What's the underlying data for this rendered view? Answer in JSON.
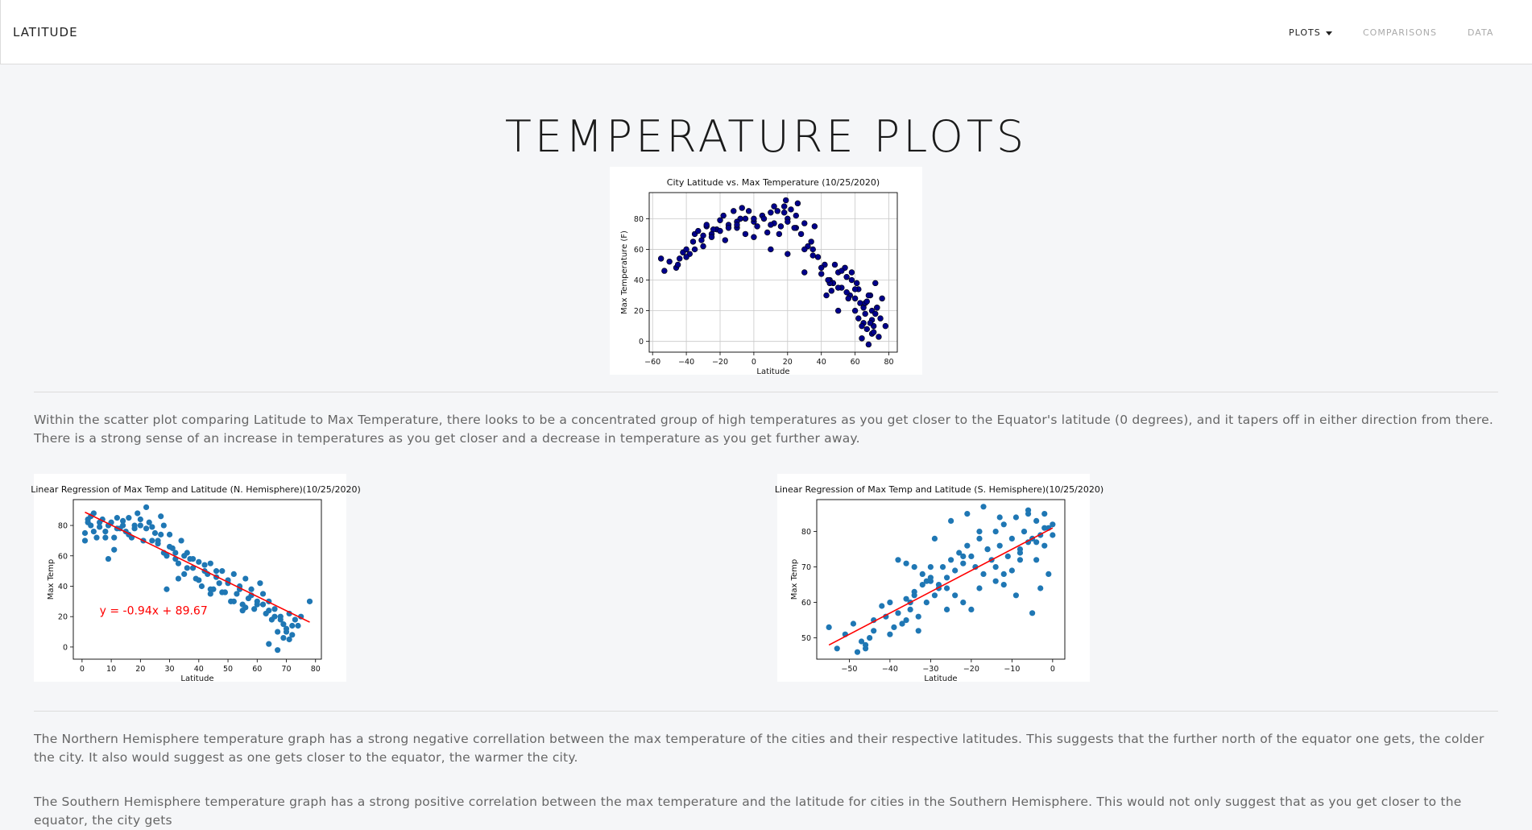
{
  "nav": {
    "brand": "LATITUDE",
    "items": [
      {
        "label": "PLOTS",
        "active": true,
        "dropdown": true
      },
      {
        "label": "COMPARISONS",
        "active": false
      },
      {
        "label": "DATA",
        "active": false
      }
    ]
  },
  "page": {
    "title": "TEMPERATURE PLOTS",
    "paragraphs": [
      "Within the scatter plot comparing Latitude to Max Temperature, there looks to be a concentrated group of high temperatures as you get closer to the Equator's latitude (0 degrees), and it tapers off in either direction from there. There is a strong sense of an increase in temperatures as you get closer and a decrease in temperature as you get further away.",
      "The Northern Hemisphere temperature graph has a strong negative correllation between the max temperature of the cities and their respective latitudes. This suggests that the further north of the equator one gets, the colder the city. It also would suggest as one gets closer to the equator, the warmer the city.",
      "The Southern Hemisphere temperature graph has a strong positive correlation between the max temperature and the latitude for cities in the Southern Hemisphere. This would not only suggest that as you get closer to the equator, the city gets"
    ]
  },
  "colors": {
    "main_point": "#00008b",
    "regression_point": "#1f77b4",
    "regression_line": "#ff0000"
  },
  "chart_data": [
    {
      "type": "scatter",
      "title": "City Latitude vs. Max Temperature (10/25/2020)",
      "xlabel": "Latitude",
      "ylabel": "Max Temperature (F)",
      "xlim": [
        -62,
        85
      ],
      "ylim": [
        -7,
        97
      ],
      "xticks": [
        -60,
        -40,
        -20,
        0,
        20,
        40,
        60,
        80
      ],
      "yticks": [
        0,
        20,
        40,
        60,
        80
      ],
      "grid": true,
      "series": [
        {
          "x": [
            -55,
            -53,
            -46,
            -44,
            -42,
            -40,
            -38,
            -36,
            -35,
            -33,
            -31,
            -30,
            -28,
            -25,
            -22,
            -20,
            -18,
            -15,
            -12,
            -10,
            -8,
            -5,
            -3,
            0,
            2,
            5,
            8,
            10,
            12,
            14,
            16,
            18,
            19,
            20,
            22,
            25,
            28,
            30,
            32,
            35,
            36,
            38,
            40,
            42,
            43,
            45,
            47,
            48,
            50,
            52,
            54,
            55,
            57,
            58,
            60,
            61,
            62,
            63,
            64,
            65,
            66,
            67,
            68,
            69,
            70,
            71,
            72,
            73,
            75,
            78,
            -50,
            -45,
            -40,
            -35,
            -30,
            -25,
            -20,
            -15,
            -10,
            -5,
            0,
            5,
            10,
            15,
            20,
            25,
            30,
            35,
            40,
            45,
            50,
            55,
            60,
            65,
            70,
            -10,
            0,
            10,
            20,
            18,
            30,
            44,
            52,
            56,
            62,
            66,
            68,
            70,
            74,
            72,
            -28,
            -24,
            -17,
            -7,
            6,
            12,
            24,
            26,
            34,
            46,
            50,
            58,
            60,
            64,
            67,
            69,
            71,
            73,
            76
          ],
          "y": [
            54,
            46,
            48,
            54,
            58,
            60,
            57,
            65,
            70,
            72,
            66,
            69,
            75,
            70,
            73,
            79,
            82,
            76,
            85,
            74,
            80,
            70,
            85,
            78,
            75,
            82,
            71,
            84,
            77,
            85,
            75,
            88,
            92,
            80,
            86,
            82,
            70,
            77,
            62,
            60,
            75,
            55,
            44,
            50,
            30,
            40,
            38,
            50,
            45,
            35,
            48,
            42,
            30,
            40,
            20,
            38,
            15,
            25,
            2,
            12,
            18,
            8,
            -2,
            30,
            20,
            10,
            38,
            22,
            15,
            10,
            52,
            50,
            55,
            60,
            62,
            68,
            72,
            74,
            78,
            80,
            80,
            82,
            76,
            70,
            78,
            74,
            60,
            56,
            48,
            38,
            35,
            32,
            28,
            22,
            14,
            76,
            68,
            60,
            57,
            84,
            45,
            40,
            46,
            28,
            34,
            25,
            30,
            5,
            3,
            18,
            76,
            73,
            66,
            87,
            80,
            88,
            74,
            90,
            65,
            33,
            20,
            45,
            34,
            10,
            26,
            12,
            6,
            22,
            28
          ]
        }
      ]
    },
    {
      "type": "scatter",
      "title": "Linear Regression of Max Temp and Latitude (N. Hemisphere)(10/25/2020)",
      "xlabel": "Latitude",
      "ylabel": "Max Temp",
      "xlim": [
        -3,
        82
      ],
      "ylim": [
        -8,
        97
      ],
      "xticks": [
        0,
        10,
        20,
        30,
        40,
        50,
        60,
        70,
        80
      ],
      "yticks": [
        0,
        20,
        40,
        60,
        80
      ],
      "annotation": "y = -0.94x + 89.67",
      "regression": {
        "slope": -0.94,
        "intercept": 89.67,
        "x_range": [
          1,
          78
        ]
      },
      "series": [
        {
          "x": [
            1,
            2,
            3,
            4,
            5,
            6,
            7,
            8,
            9,
            10,
            11,
            12,
            13,
            14,
            15,
            16,
            17,
            18,
            19,
            20,
            21,
            22,
            23,
            24,
            25,
            26,
            27,
            28,
            29,
            30,
            31,
            32,
            33,
            34,
            35,
            36,
            37,
            38,
            39,
            40,
            41,
            42,
            43,
            44,
            45,
            46,
            47,
            48,
            49,
            50,
            51,
            52,
            53,
            54,
            55,
            56,
            57,
            58,
            59,
            60,
            61,
            62,
            63,
            64,
            65,
            66,
            67,
            68,
            69,
            70,
            71,
            72,
            73,
            74,
            75,
            78,
            1,
            4,
            8,
            12,
            16,
            20,
            24,
            28,
            32,
            36,
            40,
            44,
            48,
            52,
            56,
            60,
            64,
            68,
            72,
            2,
            6,
            14,
            18,
            26,
            30,
            38,
            42,
            46,
            50,
            54,
            58,
            62,
            66,
            70,
            3,
            11,
            22,
            33,
            44,
            55,
            64,
            67,
            69,
            71,
            27,
            35,
            29,
            9
          ],
          "y": [
            75,
            82,
            80,
            88,
            72,
            79,
            84,
            76,
            80,
            82,
            72,
            85,
            78,
            83,
            76,
            85,
            72,
            80,
            88,
            84,
            70,
            92,
            82,
            79,
            75,
            68,
            86,
            80,
            60,
            74,
            65,
            62,
            55,
            70,
            48,
            62,
            58,
            52,
            45,
            56,
            40,
            50,
            48,
            55,
            38,
            46,
            42,
            50,
            36,
            44,
            30,
            48,
            35,
            40,
            28,
            45,
            32,
            38,
            25,
            30,
            42,
            35,
            22,
            30,
            18,
            25,
            10,
            20,
            15,
            12,
            22,
            8,
            18,
            14,
            20,
            30,
            70,
            76,
            72,
            78,
            74,
            80,
            70,
            62,
            58,
            52,
            44,
            38,
            36,
            30,
            26,
            28,
            24,
            18,
            14,
            84,
            82,
            80,
            78,
            70,
            66,
            58,
            54,
            50,
            42,
            38,
            34,
            28,
            20,
            10,
            86,
            64,
            78,
            45,
            35,
            24,
            2,
            -2,
            6,
            5,
            74,
            60,
            38,
            58
          ]
        }
      ]
    },
    {
      "type": "scatter",
      "title": "Linear Regression of Max Temp and Latitude (S. Hemisphere)(10/25/2020)",
      "xlabel": "Latitude",
      "ylabel": "Max Temp",
      "xlim": [
        -58,
        3
      ],
      "ylim": [
        44,
        89
      ],
      "xticks": [
        -50,
        -40,
        -30,
        -20,
        -10,
        0
      ],
      "yticks": [
        50,
        60,
        70,
        80
      ],
      "regression": {
        "slope": 0.6,
        "intercept": 81.0,
        "x_range": [
          -55,
          0
        ]
      },
      "series": [
        {
          "x": [
            -55,
            -53,
            -51,
            -49,
            -47,
            -46,
            -45,
            -44,
            -42,
            -41,
            -40,
            -39,
            -38,
            -37,
            -36,
            -35,
            -34,
            -33,
            -32,
            -31,
            -30,
            -29,
            -28,
            -27,
            -26,
            -25,
            -24,
            -23,
            -22,
            -21,
            -20,
            -19,
            -18,
            -17,
            -16,
            -15,
            -14,
            -13,
            -12,
            -11,
            -10,
            -9,
            -8,
            -7,
            -6,
            -5,
            -4,
            -3,
            -2,
            -1,
            0,
            -36,
            -34,
            -32,
            -30,
            -28,
            -26,
            -24,
            -22,
            -20,
            -18,
            -16,
            -14,
            -12,
            -10,
            -8,
            -6,
            -4,
            -2,
            0,
            -33,
            -35,
            -37,
            -31,
            -29,
            -25,
            -21,
            -17,
            -13,
            -9,
            -5,
            -3,
            -1,
            -36,
            -34,
            -30,
            -22,
            -14,
            -6,
            -2,
            -4,
            -8,
            -12,
            -18,
            -26,
            -38,
            -44,
            -46,
            -48,
            -40
          ],
          "y": [
            53,
            47,
            51,
            54,
            49,
            47,
            50,
            55,
            59,
            56,
            60,
            53,
            57,
            54,
            61,
            58,
            63,
            56,
            65,
            60,
            66,
            62,
            64,
            70,
            67,
            72,
            69,
            74,
            71,
            76,
            73,
            70,
            78,
            68,
            75,
            72,
            80,
            76,
            82,
            73,
            78,
            84,
            75,
            80,
            86,
            78,
            83,
            79,
            85,
            81,
            82,
            71,
            70,
            68,
            67,
            65,
            64,
            62,
            60,
            58,
            80,
            75,
            70,
            65,
            69,
            74,
            77,
            72,
            76,
            79,
            52,
            60,
            54,
            66,
            78,
            83,
            85,
            87,
            84,
            62,
            57,
            64,
            68,
            55,
            62,
            70,
            73,
            66,
            85,
            81,
            77,
            72,
            68,
            64,
            58,
            72,
            52,
            48,
            46,
            51
          ]
        }
      ]
    }
  ]
}
